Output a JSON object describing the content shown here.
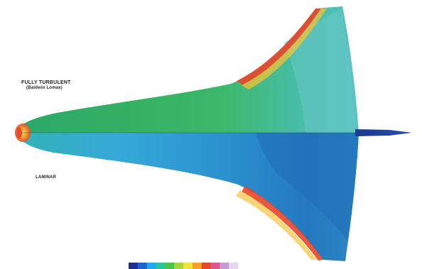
{
  "figure": {
    "upper_half": {
      "title": "FULLY TURBULENT",
      "subtitle": "(Baldwin Lomax)"
    },
    "lower_half": {
      "title": "LAMINAR"
    }
  },
  "colorbar": {
    "colors": [
      "#1f2f8e",
      "#1f63c8",
      "#22a9e8",
      "#27c59b",
      "#4dc24c",
      "#a9d63a",
      "#f4e43a",
      "#f7a22c",
      "#e4492a",
      "#d85a8c",
      "#c69ad2",
      "#e9d5ef"
    ]
  },
  "colors": {
    "green_surface": "#38b56b",
    "blue_surface": "#2e8fc9",
    "hot_edge": "#e8452a",
    "tail_fin": "#1b3d8f"
  }
}
